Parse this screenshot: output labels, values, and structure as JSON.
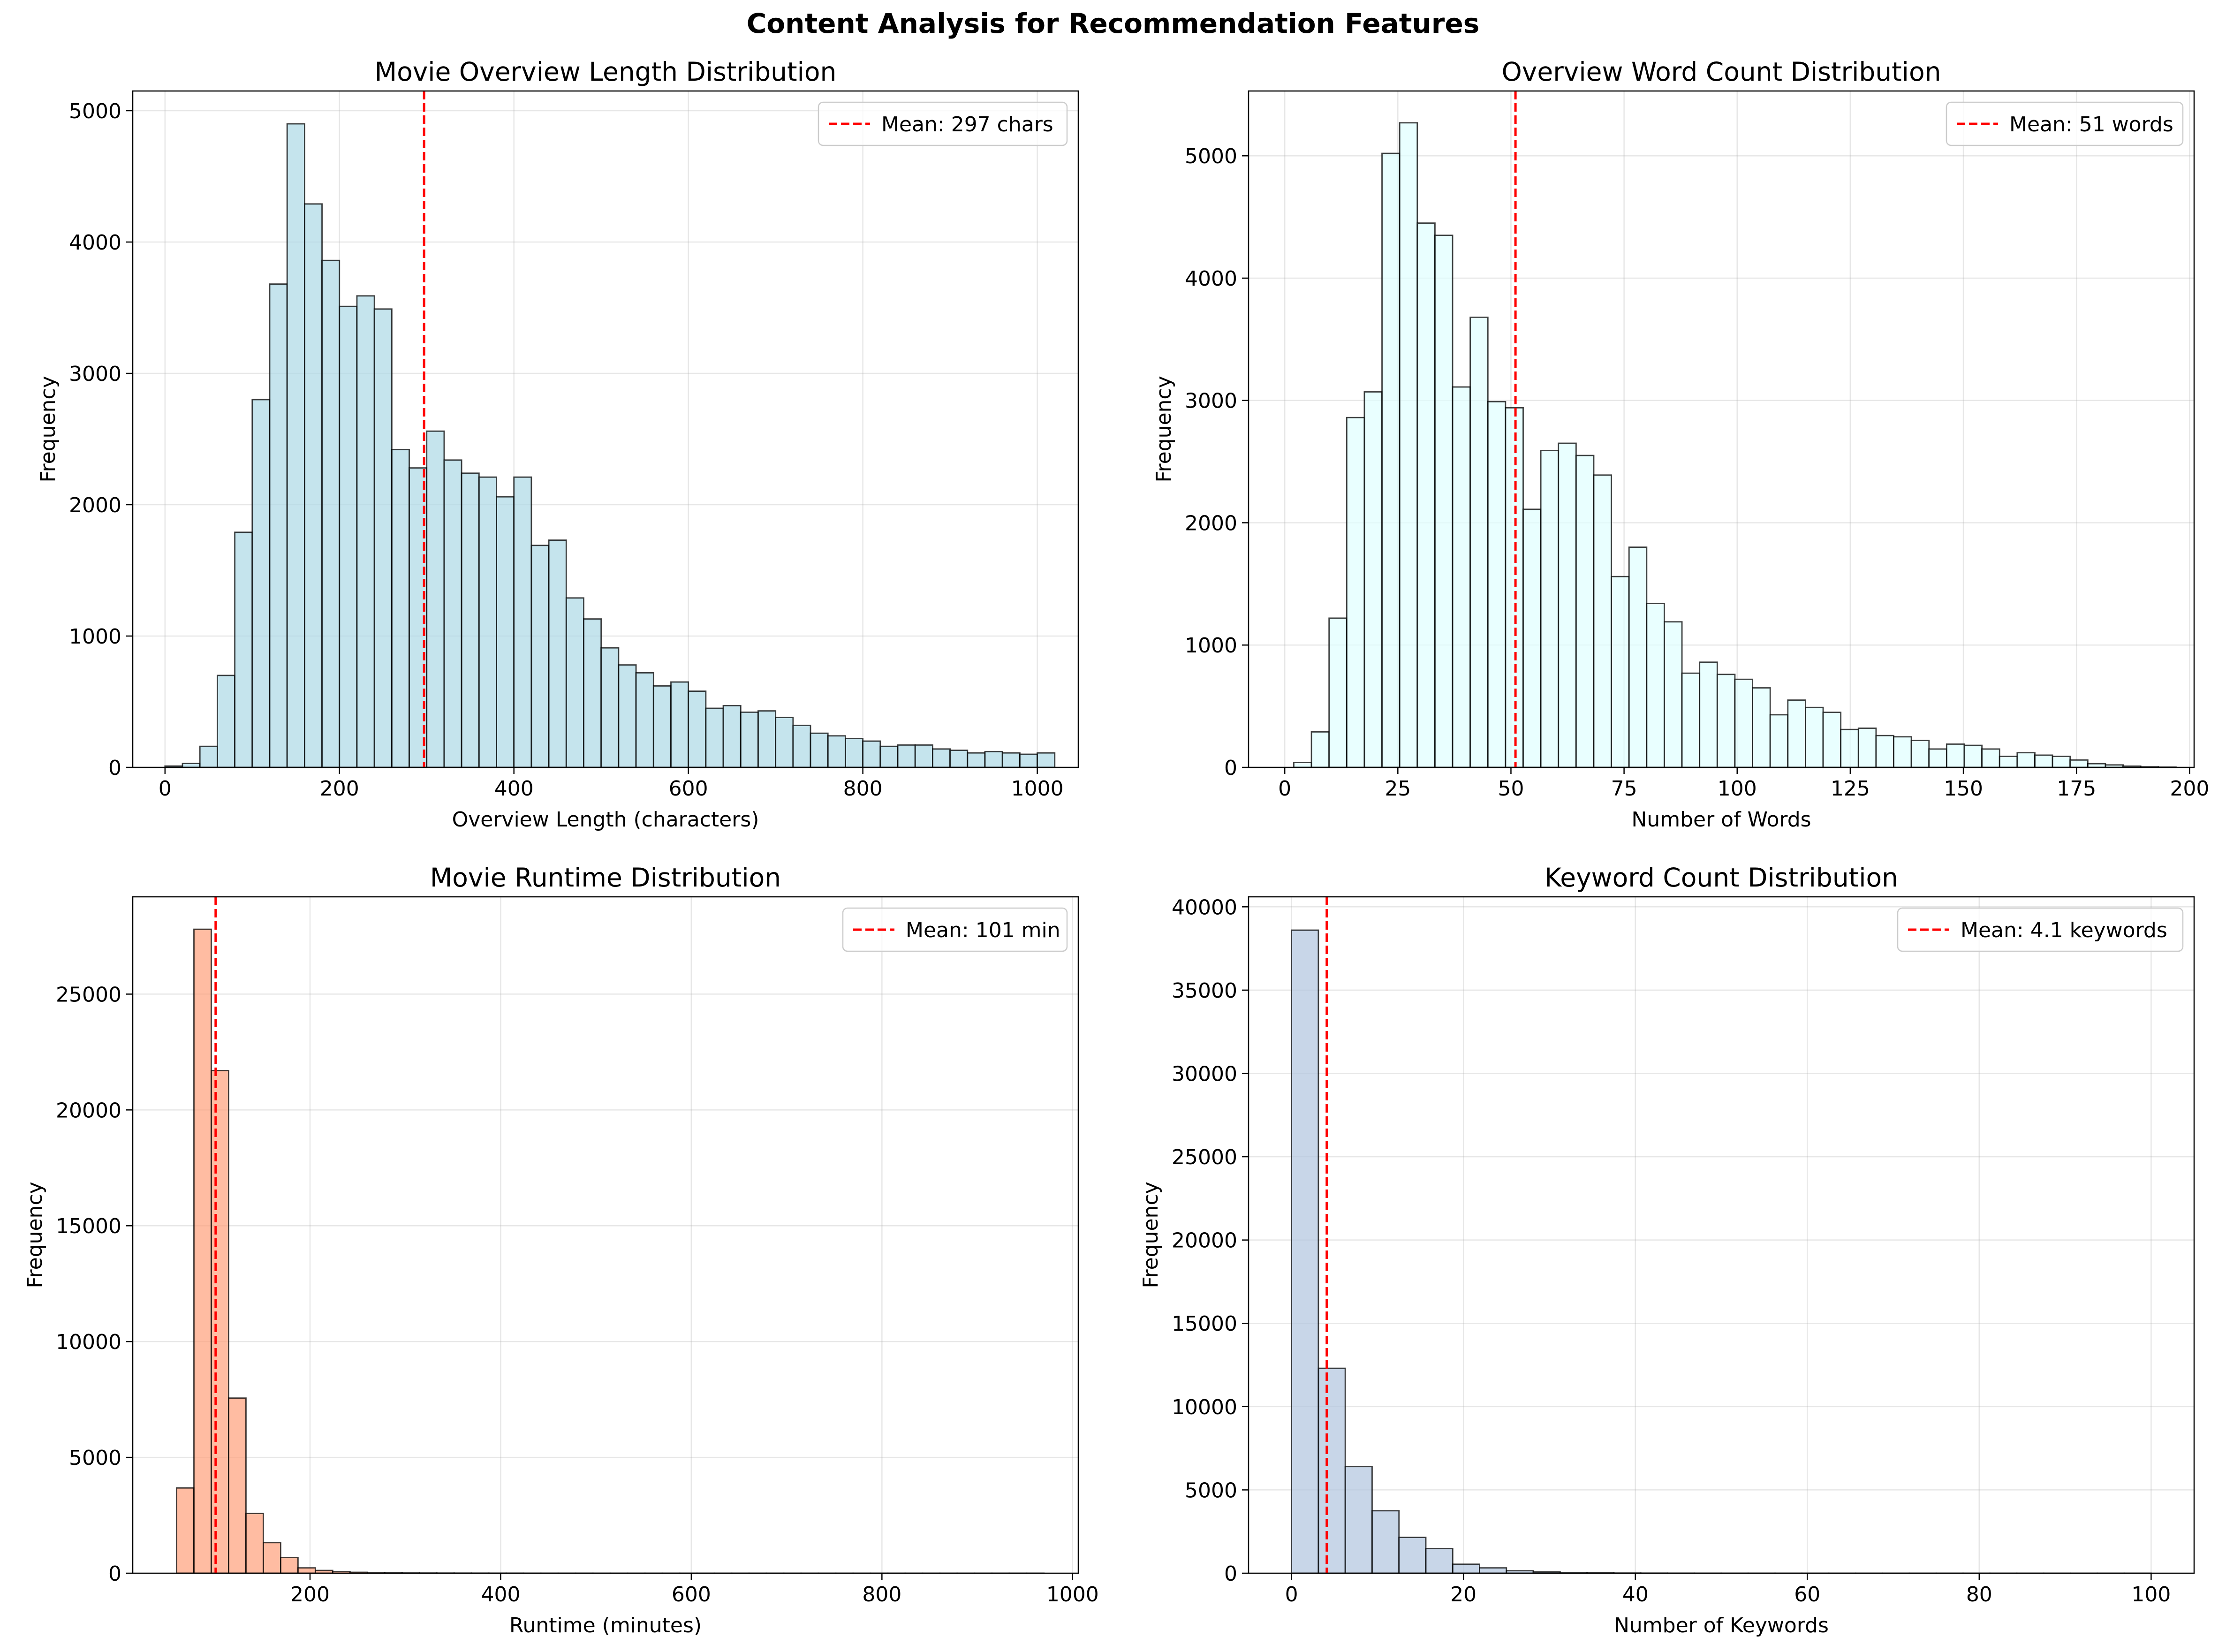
{
  "suptitle": "Content Analysis for Recommendation Features",
  "chart_data": [
    {
      "type": "bar",
      "title": "Movie Overview Length Distribution",
      "xlabel": "Overview Length (characters)",
      "ylabel": "Frequency",
      "bar_color": "#add8e6",
      "bin_start": 0,
      "bin_width": 20,
      "values": [
        10,
        30,
        160,
        700,
        1790,
        2800,
        3680,
        4900,
        4290,
        3860,
        3510,
        3590,
        3490,
        2420,
        2280,
        2560,
        2340,
        2240,
        2210,
        2060,
        2210,
        1690,
        1730,
        1290,
        1130,
        910,
        780,
        720,
        620,
        650,
        580,
        450,
        470,
        420,
        430,
        380,
        320,
        260,
        240,
        220,
        200,
        160,
        170,
        170,
        140,
        130,
        110,
        120,
        110,
        100,
        110
      ],
      "xlim": [
        -37,
        1047
      ],
      "ylim": [
        0,
        5150
      ],
      "xticks": [
        0,
        200,
        400,
        600,
        800,
        1000
      ],
      "yticks": [
        0,
        1000,
        2000,
        3000,
        4000,
        5000
      ],
      "mean": 297,
      "mean_label": "Mean: 297 chars",
      "grid": true,
      "legend": "upper right"
    },
    {
      "type": "bar",
      "title": "Overview Word Count Distribution",
      "xlabel": "Number of Words",
      "ylabel": "Frequency",
      "bar_color": "#e0ffff",
      "bin_start": 2,
      "bin_width": 3.9,
      "values": [
        40,
        290,
        1220,
        2860,
        3070,
        5020,
        5270,
        4450,
        4350,
        3110,
        3680,
        2990,
        2940,
        2110,
        2590,
        2650,
        2550,
        2390,
        1560,
        1800,
        1340,
        1190,
        770,
        860,
        760,
        720,
        650,
        430,
        550,
        490,
        450,
        310,
        320,
        260,
        250,
        220,
        150,
        190,
        180,
        150,
        90,
        120,
        100,
        90,
        60,
        30,
        20,
        10,
        5,
        2
      ],
      "xlim": [
        -8,
        201
      ],
      "ylim": [
        0,
        5530
      ],
      "xticks": [
        0,
        25,
        50,
        75,
        100,
        125,
        150,
        175,
        200
      ],
      "yticks": [
        0,
        1000,
        2000,
        3000,
        4000,
        5000
      ],
      "mean": 51,
      "mean_label": "Mean: 51 words",
      "grid": true,
      "legend": "upper right"
    },
    {
      "type": "bar",
      "title": "Movie Runtime Distribution",
      "xlabel": "Runtime (minutes)",
      "ylabel": "Frequency",
      "bar_color": "#ffa07a",
      "bin_start": 60,
      "bin_width": 18.2,
      "values": [
        3680,
        27800,
        21700,
        7560,
        2580,
        1320,
        680,
        230,
        120,
        70,
        40,
        25,
        15,
        10,
        8,
        6,
        5,
        4,
        3,
        3,
        2,
        2,
        2,
        2,
        1,
        1,
        1,
        1,
        1,
        1,
        1,
        1,
        1,
        1,
        1,
        1,
        1,
        1,
        1,
        1,
        1,
        1,
        1,
        1,
        1,
        1,
        1,
        1,
        1,
        1
      ],
      "xlim": [
        14,
        1006
      ],
      "ylim": [
        0,
        29200
      ],
      "xticks": [
        200,
        400,
        600,
        800,
        1000
      ],
      "yticks": [
        0,
        5000,
        10000,
        15000,
        20000,
        25000
      ],
      "mean": 101,
      "mean_label": "Mean: 101 min",
      "grid": true,
      "legend": "upper right"
    },
    {
      "type": "bar",
      "title": "Keyword Count Distribution",
      "xlabel": "Number of Keywords",
      "ylabel": "Frequency",
      "bar_color": "#b0c4de",
      "bin_start": 0,
      "bin_width": 3.125,
      "values": [
        38600,
        12300,
        6400,
        3750,
        2150,
        1480,
        540,
        320,
        150,
        80,
        40,
        20,
        10,
        6,
        4,
        3,
        2,
        2,
        1,
        1,
        1,
        1,
        1,
        1,
        1,
        1,
        1,
        1,
        1,
        1,
        1,
        1
      ],
      "xlim": [
        -5,
        105
      ],
      "ylim": [
        0,
        40600
      ],
      "xticks": [
        0,
        20,
        40,
        60,
        80,
        100
      ],
      "yticks": [
        0,
        5000,
        10000,
        15000,
        20000,
        25000,
        30000,
        35000,
        40000
      ],
      "mean": 4.1,
      "mean_label": "Mean: 4.1 keywords",
      "grid": true,
      "legend": "upper right"
    }
  ]
}
